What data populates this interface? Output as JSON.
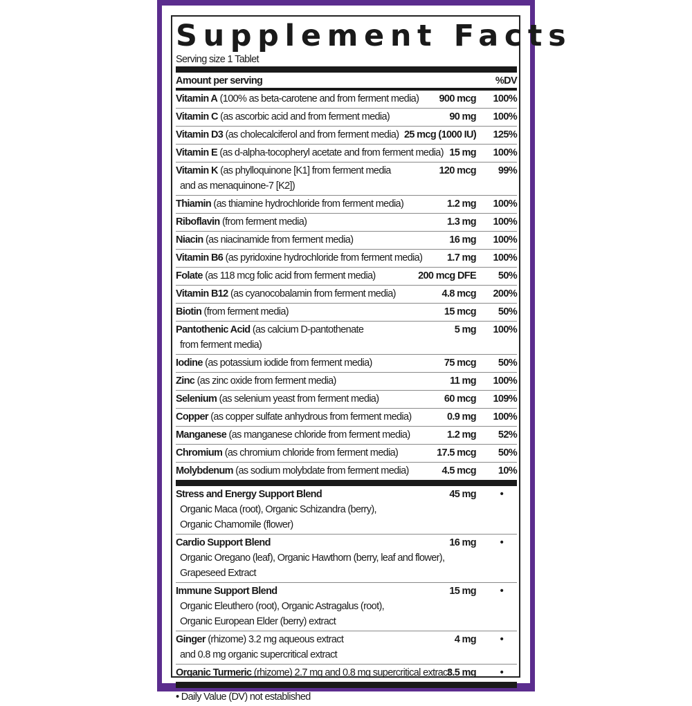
{
  "brand_color": "#5b2d8e",
  "title": "Supplement Facts",
  "serving_size": "Serving size 1 Tablet",
  "header": {
    "amount": "Amount per serving",
    "dv": "%DV"
  },
  "nutrients": [
    {
      "name": "Vitamin A",
      "desc": " (100% as beta-carotene and from ferment media)",
      "amount": "900 mcg",
      "dv": "100%"
    },
    {
      "name": "Vitamin C",
      "desc": " (as ascorbic acid and from ferment media)",
      "amount": "90 mg",
      "dv": "100%"
    },
    {
      "name": "Vitamin D3",
      "desc": " (as cholecalciferol and from ferment media)",
      "amount": "25 mcg (1000 IU)",
      "dv": "125%"
    },
    {
      "name": "Vitamin E",
      "desc": " (as d-alpha-tocopheryl acetate and from ferment media)",
      "amount": "15 mg",
      "dv": "100%"
    },
    {
      "name": "Vitamin K",
      "desc": " (as phylloquinone [K1] from ferment media",
      "desc2": "and as menaquinone-7 [K2])",
      "amount": "120 mcg",
      "dv": "99%"
    },
    {
      "name": "Thiamin",
      "desc": " (as thiamine hydrochloride from ferment media)",
      "amount": "1.2 mg",
      "dv": "100%"
    },
    {
      "name": "Riboflavin",
      "desc": " (from ferment media)",
      "amount": "1.3 mg",
      "dv": "100%"
    },
    {
      "name": "Niacin",
      "desc": " (as niacinamide from ferment media)",
      "amount": "16 mg",
      "dv": "100%"
    },
    {
      "name": "Vitamin B6",
      "desc": " (as pyridoxine hydrochloride from ferment media)",
      "amount": "1.7 mg",
      "dv": "100%"
    },
    {
      "name": "Folate",
      "desc": " (as 118 mcg folic acid from ferment media)",
      "amount": "200 mcg DFE",
      "dv": "50%"
    },
    {
      "name": "Vitamin B12",
      "desc": " (as cyanocobalamin from ferment media)",
      "amount": "4.8 mcg",
      "dv": "200%"
    },
    {
      "name": "Biotin",
      "desc": " (from ferment media)",
      "amount": "15 mcg",
      "dv": "50%"
    },
    {
      "name": "Pantothenic Acid",
      "desc": " (as calcium D-pantothenate",
      "desc2": "from ferment media)",
      "amount": "5 mg",
      "dv": "100%"
    },
    {
      "name": "Iodine",
      "desc": " (as potassium iodide from ferment media)",
      "amount": "75 mcg",
      "dv": "50%"
    },
    {
      "name": "Zinc",
      "desc": " (as zinc oxide from ferment media)",
      "amount": "11 mg",
      "dv": "100%"
    },
    {
      "name": "Selenium",
      "desc": " (as selenium yeast from ferment media)",
      "amount": "60 mcg",
      "dv": "109%"
    },
    {
      "name": "Copper",
      "desc": " (as copper sulfate anhydrous from ferment media)",
      "amount": "0.9 mg",
      "dv": "100%"
    },
    {
      "name": "Manganese",
      "desc": " (as manganese chloride from ferment media)",
      "amount": "1.2 mg",
      "dv": "52%"
    },
    {
      "name": "Chromium",
      "desc": " (as chromium chloride from ferment media)",
      "amount": "17.5 mcg",
      "dv": "50%"
    },
    {
      "name": "Molybdenum",
      "desc": " (as sodium molybdate from ferment media)",
      "amount": "4.5 mcg",
      "dv": "10%"
    }
  ],
  "blends": [
    {
      "name": "Stress and Energy Support Blend",
      "desc": "",
      "lines": [
        "Organic Maca (root), Organic Schizandra (berry),",
        "Organic Chamomile (flower)"
      ],
      "amount": "45 mg",
      "dv": "•"
    },
    {
      "name": "Cardio Support Blend",
      "desc": "",
      "lines": [
        "Organic Oregano (leaf), Organic Hawthorn (berry, leaf and flower),",
        "Grapeseed Extract"
      ],
      "amount": "16 mg",
      "dv": "•"
    },
    {
      "name": "Immune Support Blend",
      "desc": "",
      "lines": [
        "Organic Eleuthero (root), Organic Astragalus (root),",
        "Organic European Elder (berry) extract"
      ],
      "amount": "15 mg",
      "dv": "•"
    },
    {
      "name": "Ginger",
      "desc": " (rhizome) 3.2 mg aqueous extract",
      "lines": [
        "and 0.8 mg organic supercritical extract"
      ],
      "amount": "4 mg",
      "dv": "•"
    },
    {
      "name": "Organic Turmeric",
      "desc": " (rhizome) 2.7 mg and 0.8 mg supercritical extract",
      "lines": [],
      "amount": "3.5 mg",
      "dv": "•"
    }
  ],
  "footnote": "• Daily Value (DV) not established"
}
